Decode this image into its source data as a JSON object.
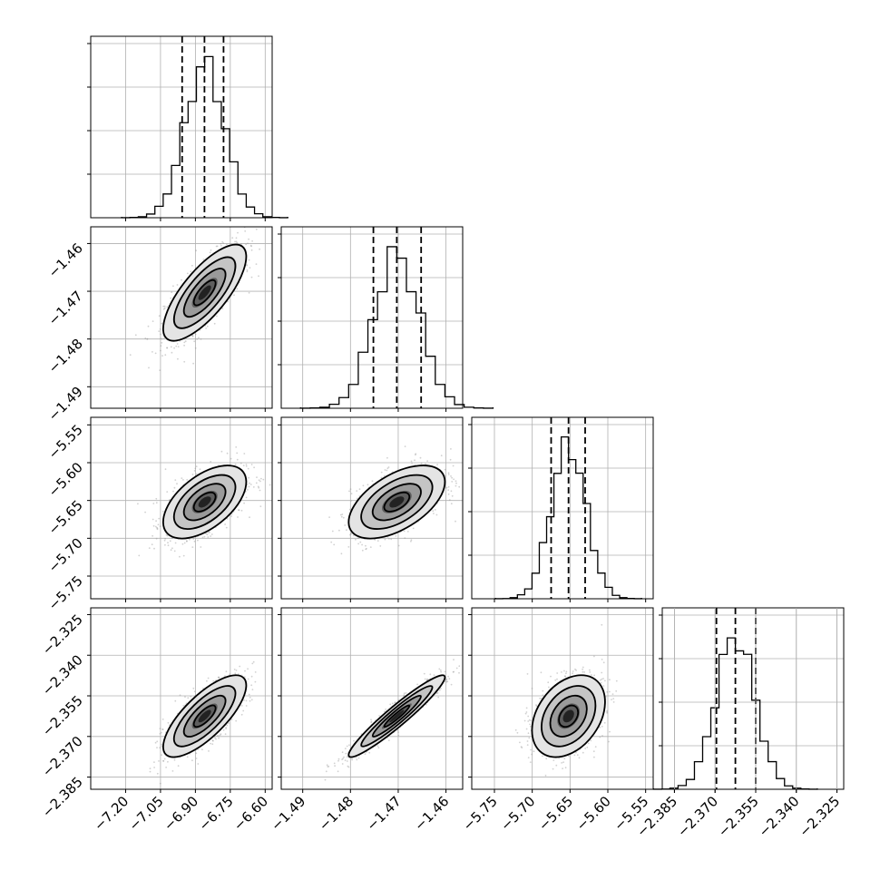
{
  "chart_data": {
    "type": "corner",
    "grid": true,
    "parameters": [
      {
        "index": 0,
        "range": [
          -7.35,
          -6.57
        ],
        "ticks": [
          -7.2,
          -7.05,
          -6.9,
          -6.75,
          -6.6
        ],
        "tick_labels": [
          "−7.20",
          "−7.05",
          "−6.90",
          "−6.75",
          "−6.60"
        ],
        "mean": -6.86,
        "std": 0.085,
        "quantiles": [
          -6.957,
          -6.861,
          -6.779
        ]
      },
      {
        "index": 1,
        "range": [
          -1.4945,
          -1.4565
        ],
        "ticks": [
          -1.49,
          -1.48,
          -1.47,
          -1.46
        ],
        "tick_labels": [
          "−1.49",
          "−1.48",
          "−1.47",
          "−1.46"
        ],
        "mean": -1.4703,
        "std": 0.0048,
        "quantiles": [
          -1.4752,
          -1.4703,
          -1.4652
        ]
      },
      {
        "index": 2,
        "range": [
          -5.78,
          -5.54
        ],
        "ticks": [
          -5.75,
          -5.7,
          -5.65,
          -5.6,
          -5.55
        ],
        "tick_labels": [
          "−5.75",
          "−5.70",
          "−5.65",
          "−5.60",
          "−5.55"
        ],
        "mean": -5.652,
        "std": 0.023,
        "quantiles": [
          -5.675,
          -5.652,
          -5.63
        ]
      },
      {
        "index": 3,
        "range": [
          -2.3895,
          -2.3225
        ],
        "ticks": [
          -2.385,
          -2.37,
          -2.355,
          -2.34,
          -2.325
        ],
        "tick_labels": [
          "−2.385",
          "−2.370",
          "−2.355",
          "−2.340",
          "−2.325"
        ],
        "mean": -2.3625,
        "std": 0.0072,
        "quantiles": [
          -2.3695,
          -2.3625,
          -2.355
        ]
      }
    ],
    "correlations": [
      {
        "pair": [
          1,
          0
        ],
        "rho": 0.75
      },
      {
        "pair": [
          2,
          0
        ],
        "rho": 0.55
      },
      {
        "pair": [
          2,
          1
        ],
        "rho": 0.55
      },
      {
        "pair": [
          3,
          0
        ],
        "rho": 0.75
      },
      {
        "pair": [
          3,
          1
        ],
        "rho": 0.95
      },
      {
        "pair": [
          3,
          2
        ],
        "rho": 0.35
      }
    ],
    "contour_levels_sigma": [
      0.5,
      1.0,
      1.5,
      2.0
    ]
  }
}
